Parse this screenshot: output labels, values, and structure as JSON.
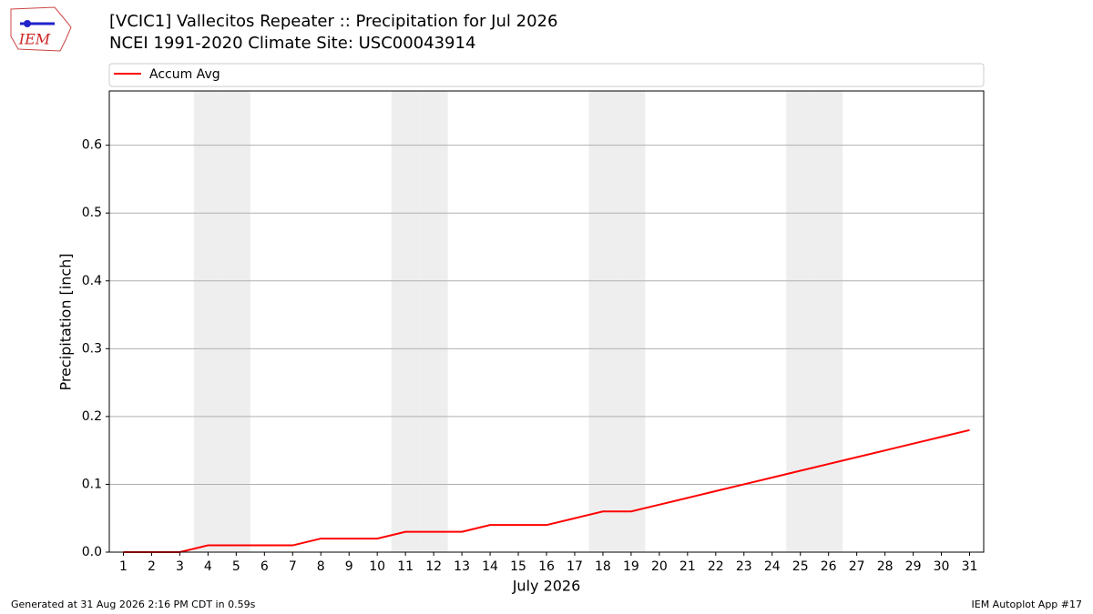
{
  "chart_data": {
    "type": "line",
    "title": "[VCIC1] Vallecitos Repeater :: Precipitation for Jul 2026",
    "subtitle": "NCEI 1991-2020 Climate Site: USC00043914",
    "x_label": "July 2026",
    "y_label": "Precipitation [inch]",
    "x": [
      1,
      2,
      3,
      4,
      5,
      6,
      7,
      8,
      9,
      10,
      11,
      12,
      13,
      14,
      15,
      16,
      17,
      18,
      19,
      20,
      21,
      22,
      23,
      24,
      25,
      26,
      27,
      28,
      29,
      30,
      31
    ],
    "series": [
      {
        "name": "Accum Avg",
        "color": "#ff0000",
        "values": [
          0,
          0,
          0,
          0.01,
          0.01,
          0.01,
          0.01,
          0.02,
          0.02,
          0.02,
          0.03,
          0.03,
          0.03,
          0.04,
          0.04,
          0.04,
          0.05,
          0.06,
          0.06,
          0.07,
          0.08,
          0.09,
          0.1,
          0.11,
          0.12,
          0.13,
          0.14,
          0.15,
          0.16,
          0.17,
          0.18
        ]
      }
    ],
    "shaded_days": [
      4,
      5,
      11,
      12,
      18,
      19,
      25,
      26
    ],
    "xlim": [
      0.5,
      31.5
    ],
    "ylim": [
      0,
      0.68
    ],
    "xticks": [
      1,
      2,
      3,
      4,
      5,
      6,
      7,
      8,
      9,
      10,
      11,
      12,
      13,
      14,
      15,
      16,
      17,
      18,
      19,
      20,
      21,
      22,
      23,
      24,
      25,
      26,
      27,
      28,
      29,
      30,
      31
    ],
    "yticks": [
      {
        "value": 0,
        "label": "0.0"
      },
      0.1,
      0.2,
      0.3,
      0.4,
      0.5,
      0.6
    ],
    "grid": true,
    "legend": "top"
  },
  "logo_text": "IEM",
  "footer_left": "Generated at 31 Aug 2026 2:16 PM CDT in 0.59s",
  "footer_right": "IEM Autoplot App #17"
}
